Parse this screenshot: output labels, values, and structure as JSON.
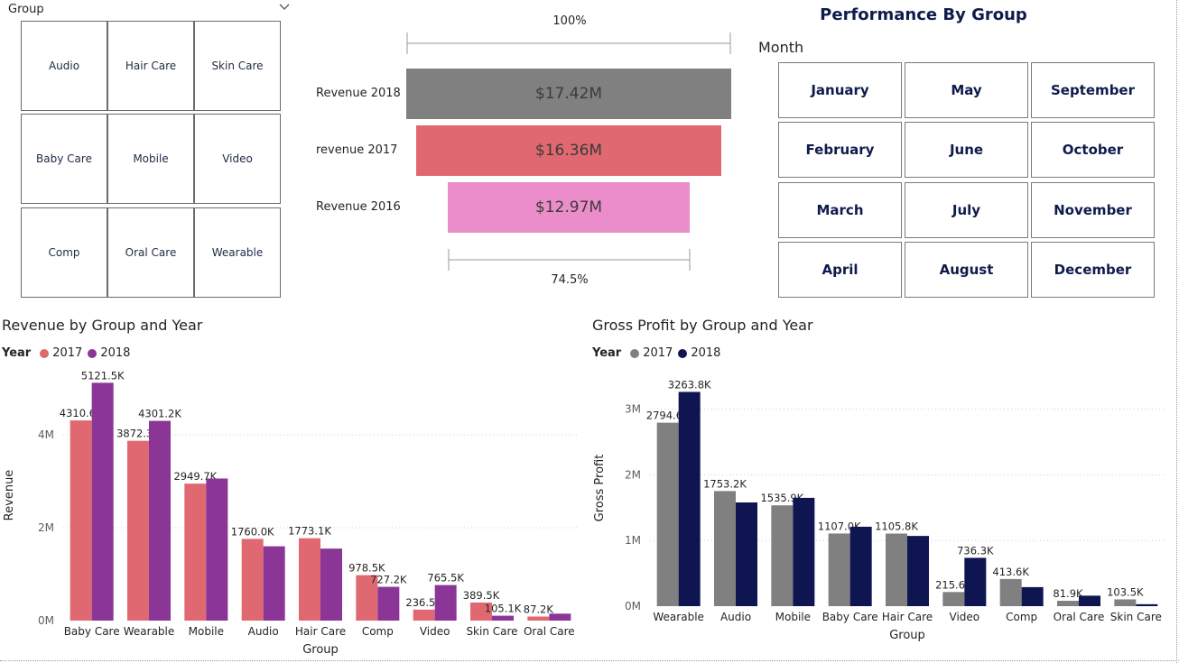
{
  "group_slicer": {
    "title": "Group",
    "items": [
      "Audio",
      "Hair Care",
      "Skin Care",
      "Baby Care",
      "Mobile",
      "Video",
      "Comp",
      "Oral Care",
      "Wearable"
    ]
  },
  "funnel": {
    "top_pct": "100%",
    "bottom_pct": "74.5%",
    "rows": [
      {
        "label": "Revenue 2018",
        "value": "$17.42M",
        "amount": 17.42,
        "color": "#808080"
      },
      {
        "label": "revenue 2017",
        "value": "$16.36M",
        "amount": 16.36,
        "color": "#e06870"
      },
      {
        "label": "Revenue 2016",
        "value": "$12.97M",
        "amount": 12.97,
        "color": "#ec8dcb"
      }
    ]
  },
  "performance": {
    "title": "Performance By Group",
    "month_label": "Month",
    "months": [
      "January",
      "May",
      "September",
      "February",
      "June",
      "October",
      "March",
      "July",
      "November",
      "April",
      "August",
      "December"
    ]
  },
  "chart_data": [
    {
      "type": "bar",
      "title": "Revenue by Group and Year",
      "xlabel": "Group",
      "ylabel": "Revenue",
      "legend_title": "Year",
      "ylim": [
        0,
        5400
      ],
      "yticks": [
        0,
        2000,
        4000
      ],
      "ytick_labels": [
        "0M",
        "2M",
        "4M"
      ],
      "categories": [
        "Baby Care",
        "Wearable",
        "Mobile",
        "Audio",
        "Hair Care",
        "Comp",
        "Video",
        "Skin Care",
        "Oral Care"
      ],
      "series": [
        {
          "name": "2017",
          "color": "#e06870",
          "values": [
            4310.6,
            3872.3,
            2949.7,
            1760.0,
            1773.1,
            978.5,
            236.5,
            389.5,
            87.2
          ],
          "labels": [
            "4310.6K",
            "3872.3K",
            "2949.7K",
            "1760.0K",
            "1773.1K",
            "978.5K",
            "236.5K",
            "389.5K",
            "87.2K"
          ]
        },
        {
          "name": "2018",
          "color": "#8b3597",
          "values": [
            5121.5,
            4301.2,
            3060,
            1600,
            1550,
            727.2,
            765.5,
            105.1,
            150
          ],
          "labels": [
            "5121.5K",
            "4301.2K",
            "",
            "",
            "",
            "727.2K",
            "765.5K",
            "105.1K",
            ""
          ]
        }
      ]
    },
    {
      "type": "bar",
      "title": "Gross Profit by Group and Year",
      "xlabel": "Group",
      "ylabel": "Gross Profit",
      "legend_title": "Year",
      "ylim": [
        0,
        3600
      ],
      "yticks": [
        0,
        1000,
        2000,
        3000
      ],
      "ytick_labels": [
        "0M",
        "1M",
        "2M",
        "3M"
      ],
      "categories": [
        "Wearable",
        "Audio",
        "Mobile",
        "Baby Care",
        "Hair Care",
        "Video",
        "Comp",
        "Oral Care",
        "Skin Care"
      ],
      "series": [
        {
          "name": "2017",
          "color": "#808080",
          "values": [
            2794.6,
            1753.2,
            1535.9,
            1107.0,
            1105.8,
            215.6,
            413.6,
            81.9,
            103.5
          ],
          "labels": [
            "2794.6K",
            "1753.2K",
            "1535.9K",
            "1107.0K",
            "1105.8K",
            "215.6K",
            "413.6K",
            "81.9K",
            "103.5K"
          ]
        },
        {
          "name": "2018",
          "color": "#0f1550",
          "values": [
            3263.8,
            1580,
            1650,
            1210,
            1070,
            736.3,
            290,
            160,
            30
          ],
          "labels": [
            "3263.8K",
            "",
            "",
            "",
            "",
            "736.3K",
            "",
            "",
            ""
          ]
        }
      ]
    }
  ]
}
